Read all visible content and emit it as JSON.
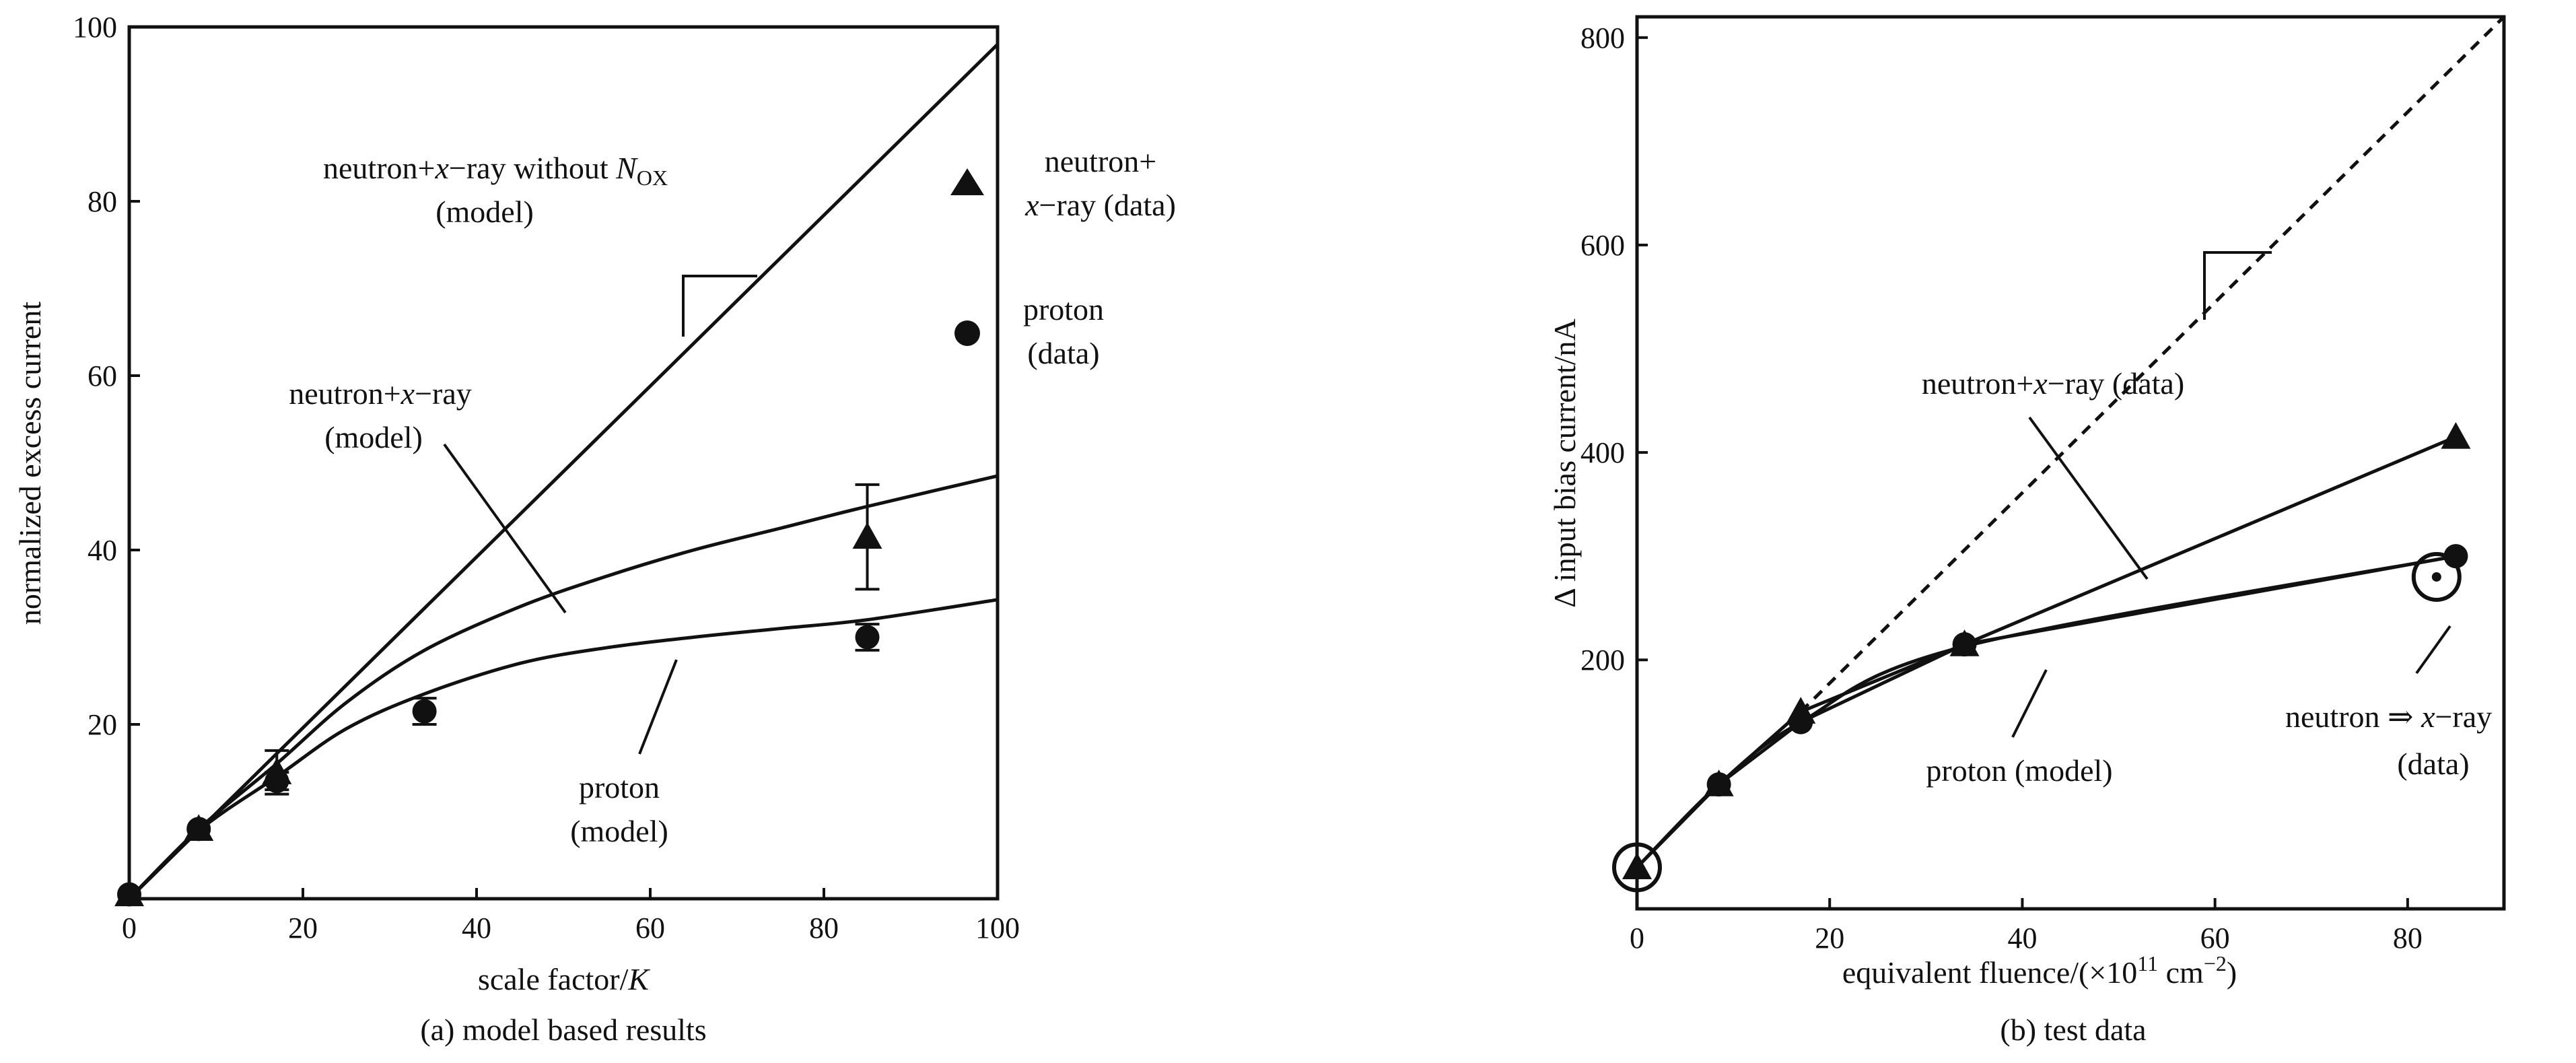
{
  "chart_data": [
    {
      "type": "line",
      "caption": "(a) model based results",
      "xlabel": "scale factor/",
      "xlabel_var": "K",
      "ylabel": "normalized excess current",
      "xlim": [
        0,
        100
      ],
      "ylim": [
        0,
        100
      ],
      "xticks": [
        0,
        20,
        40,
        60,
        80,
        100
      ],
      "yticks": [
        20,
        40,
        60,
        80,
        100
      ],
      "grid": false,
      "series": [
        {
          "key": "without_nox",
          "x": [
            0,
            100
          ],
          "y": [
            0,
            98
          ]
        },
        {
          "key": "neutron_xray_model",
          "x": [
            0,
            8,
            17,
            25,
            34,
            45,
            55,
            65,
            75,
            85,
            100
          ],
          "y": [
            0,
            8,
            15.5,
            22.5,
            28.5,
            33.5,
            37,
            40,
            42.5,
            45,
            48.5
          ]
        },
        {
          "key": "proton_model",
          "x": [
            0,
            8,
            17,
            25,
            34,
            45,
            55,
            65,
            75,
            85,
            100
          ],
          "y": [
            0,
            7.8,
            14,
            19.5,
            23.5,
            27,
            28.8,
            30,
            31,
            32,
            34.3
          ]
        },
        {
          "key": "neutron_xray_data",
          "marker": "triangle",
          "x": [
            0,
            8,
            17,
            85
          ],
          "y": [
            0.5,
            8,
            14.5,
            41.5
          ],
          "err": [
            0,
            0,
            2.5,
            6
          ]
        },
        {
          "key": "proton_data",
          "marker": "circle",
          "x": [
            0,
            8,
            17,
            34,
            85
          ],
          "y": [
            0.5,
            8,
            13.5,
            21.5,
            30
          ],
          "err": [
            0,
            0,
            1,
            1.5,
            1.5
          ]
        }
      ],
      "annotations": {
        "without_nox": {
          "main": "neutron+",
          "var": "x",
          "rest": "−ray without ",
          "N": "N",
          "sub": "OX",
          "line2": "(model)"
        },
        "neutron_xray_model": {
          "main": "neutron+",
          "var": "x",
          "rest": "−ray",
          "line2": "(model)"
        },
        "proton_model": {
          "line1": "proton",
          "line2": "(model)"
        },
        "legend_triangle": {
          "line1": "neutron+",
          "var": "x",
          "rest": "−ray (data)"
        },
        "legend_circle": {
          "line1": "proton",
          "line2": "(data)"
        }
      }
    },
    {
      "type": "line",
      "caption": "(b) test data",
      "xlabel": "equivalent fluence/(×10",
      "xlabel_sup": "11",
      "xlabel_unit": " cm",
      "xlabel_unit_sup": "−2",
      "xlabel_end": ")",
      "ylabel": "Δ input bias current/nA",
      "xlim": [
        0,
        90
      ],
      "ylim": [
        -40,
        820
      ],
      "xticks": [
        0,
        20,
        40,
        60,
        80
      ],
      "yticks": [
        200,
        400,
        600,
        800
      ],
      "grid": false,
      "series": [
        {
          "key": "neutron_xray_data",
          "marker": "triangle",
          "x": [
            0,
            8.5,
            17,
            34,
            85
          ],
          "y": [
            0,
            80,
            150,
            215,
            415
          ]
        },
        {
          "key": "proton_model",
          "x": [
            0,
            8.5,
            17,
            34,
            85
          ],
          "y": [
            0,
            80,
            140,
            213,
            300
          ]
        },
        {
          "key": "proton_points",
          "marker": "circle",
          "x": [
            8.5,
            17,
            34,
            85
          ],
          "y": [
            80,
            140,
            215,
            300
          ]
        },
        {
          "key": "dashed_extrapolation",
          "x": [
            17,
            90
          ],
          "y": [
            150,
            820
          ]
        }
      ],
      "special_points": [
        {
          "marker": "circled-dot",
          "x": 0,
          "y": 0
        },
        {
          "marker": "circled-dot",
          "x": 83,
          "y": 280
        }
      ],
      "annotations": {
        "neutron_xray_data": {
          "main": "neutron+",
          "var": "x",
          "rest": "−ray (data)"
        },
        "proton_model": {
          "line1": "proton (model)"
        },
        "neutron_to_xray": {
          "main": "neutron ",
          "arrow": "⇒",
          "var": " x",
          "rest": "−ray",
          "line2": "(data)"
        }
      }
    }
  ]
}
